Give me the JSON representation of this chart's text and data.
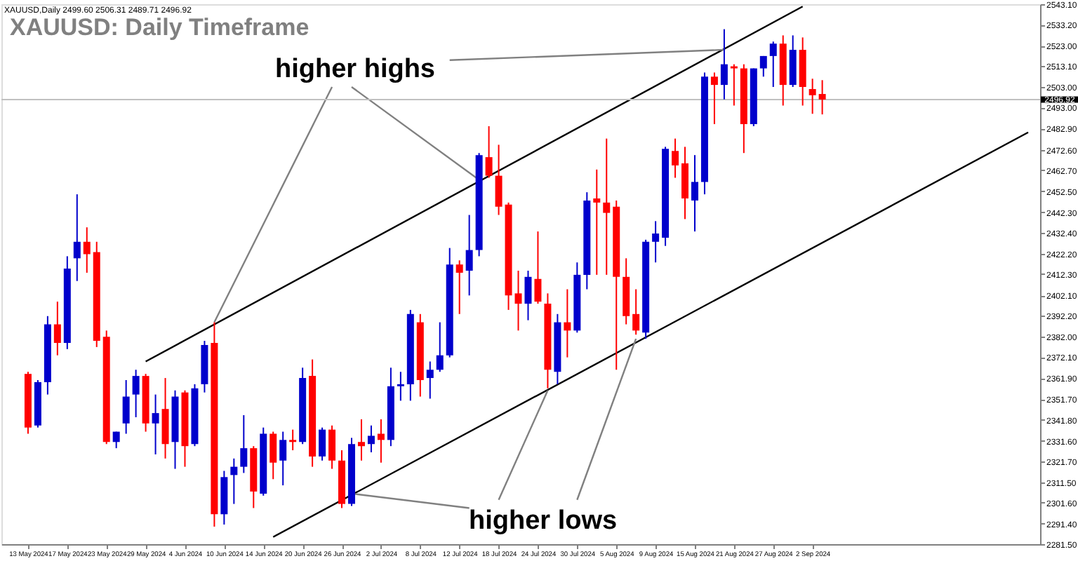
{
  "chart_data": {
    "type": "candlestick",
    "title": "XAUUSD: Daily Timeframe",
    "annotations": [
      "XAUUSD,Daily  2499.60 2506.31 2489.71 2496.92",
      "higher highs",
      "higher lows"
    ],
    "categories": [
      "13 May 2024",
      null,
      null,
      null,
      "17 May 2024",
      null,
      null,
      null,
      "23 May 2024",
      null,
      null,
      null,
      "29 May 2024",
      null,
      null,
      null,
      "4 Jun 2024",
      null,
      null,
      null,
      "10 Jun 2024",
      null,
      null,
      null,
      "14 Jun 2024",
      null,
      null,
      null,
      "20 Jun 2024",
      null,
      null,
      null,
      "26 Jun 2024",
      null,
      null,
      null,
      "2 Jul 2024",
      null,
      null,
      null,
      "8 Jul 2024",
      null,
      null,
      null,
      "12 Jul 2024",
      null,
      null,
      null,
      "18 Jul 2024",
      null,
      null,
      null,
      "24 Jul 2024",
      null,
      null,
      null,
      "30 Jul 2024",
      null,
      null,
      null,
      "5 Aug 2024",
      null,
      null,
      null,
      "9 Aug 2024",
      null,
      null,
      null,
      "15 Aug 2024",
      null,
      null,
      null,
      "21 Aug 2024",
      null,
      null,
      null,
      "27 Aug 2024",
      null,
      null,
      null,
      "2 Sep 2024",
      null,
      null,
      null,
      null,
      null,
      null,
      null,
      null,
      null,
      null,
      null,
      null,
      null,
      null,
      null,
      null,
      null,
      null,
      null,
      null,
      null,
      null
    ],
    "ohlc": [
      [
        2364,
        2365,
        2335,
        2338
      ],
      [
        2339,
        2361,
        2338,
        2360
      ],
      [
        2360,
        2392,
        2354,
        2388
      ],
      [
        2388,
        2399,
        2373,
        2379
      ],
      [
        2379,
        2421,
        2376,
        2415
      ],
      [
        2420,
        2451,
        2409,
        2428
      ],
      [
        2428,
        2435,
        2413,
        2422
      ],
      [
        2423,
        2428,
        2377,
        2380
      ],
      [
        2382,
        2385,
        2330,
        2331
      ],
      [
        2331,
        2336,
        2328,
        2336
      ],
      [
        2340,
        2361,
        2335,
        2353
      ],
      [
        2354,
        2366,
        2343,
        2363
      ],
      [
        2363,
        2364,
        2336,
        2340
      ],
      [
        2340,
        2354,
        2325,
        2345
      ],
      [
        2347,
        2362,
        2323,
        2330
      ],
      [
        2331,
        2356,
        2318,
        2353
      ],
      [
        2355,
        2356,
        2319,
        2329
      ],
      [
        2330,
        2359,
        2329,
        2357
      ],
      [
        2359,
        2380,
        2355,
        2378
      ],
      [
        2379,
        2389,
        2290,
        2296
      ],
      [
        2296,
        2317,
        2291,
        2314
      ],
      [
        2315,
        2323,
        2301,
        2319
      ],
      [
        2319,
        2344,
        2316,
        2328
      ],
      [
        2328,
        2329,
        2299,
        2307
      ],
      [
        2306,
        2338,
        2305,
        2335
      ],
      [
        2335,
        2336,
        2313,
        2321
      ],
      [
        2322,
        2336,
        2310,
        2332
      ],
      [
        2332,
        2337,
        2327,
        2331
      ],
      [
        2331,
        2367,
        2330,
        2362
      ],
      [
        2363,
        2371,
        2319,
        2324
      ],
      [
        2324,
        2338,
        2322,
        2337
      ],
      [
        2337,
        2339,
        2318,
        2322
      ],
      [
        2322,
        2327,
        2299,
        2301
      ],
      [
        2301,
        2333,
        2300,
        2330
      ],
      [
        2331,
        2342,
        2322,
        2329
      ],
      [
        2330,
        2339,
        2326,
        2334
      ],
      [
        2335,
        2342,
        2321,
        2332
      ],
      [
        2332,
        2367,
        2329,
        2358
      ],
      [
        2358,
        2365,
        2351,
        2359
      ],
      [
        2359,
        2395,
        2351,
        2393
      ],
      [
        2389,
        2393,
        2353,
        2361
      ],
      [
        2362,
        2370,
        2352,
        2366
      ],
      [
        2366,
        2389,
        2365,
        2373
      ],
      [
        2373,
        2425,
        2372,
        2417
      ],
      [
        2417,
        2419,
        2393,
        2413
      ],
      [
        2414,
        2441,
        2402,
        2424
      ],
      [
        2424,
        2471,
        2421,
        2470
      ],
      [
        2469,
        2484,
        2459,
        2460
      ],
      [
        2460,
        2475,
        2441,
        2445
      ],
      [
        2446,
        2447,
        2395,
        2402
      ],
      [
        2403,
        2414,
        2385,
        2398
      ],
      [
        2398,
        2414,
        2390,
        2411
      ],
      [
        2410,
        2433,
        2398,
        2399
      ],
      [
        2398,
        2403,
        2357,
        2366
      ],
      [
        2365,
        2393,
        2359,
        2389
      ],
      [
        2389,
        2405,
        2372,
        2385
      ],
      [
        2385,
        2418,
        2384,
        2412
      ],
      [
        2412,
        2452,
        2405,
        2448
      ],
      [
        2449,
        2463,
        2412,
        2447
      ],
      [
        2447,
        2478,
        2412,
        2442
      ],
      [
        2445,
        2448,
        2366,
        2411
      ],
      [
        2411,
        2420,
        2388,
        2392
      ],
      [
        2393,
        2405,
        2383,
        2385
      ],
      [
        2384,
        2429,
        2381,
        2428
      ],
      [
        2428,
        2438,
        2418,
        2432
      ],
      [
        2430,
        2474,
        2426,
        2473
      ],
      [
        2472,
        2478,
        2459,
        2465
      ],
      [
        2466,
        2474,
        2439,
        2449
      ],
      [
        2448,
        2470,
        2433,
        2457
      ],
      [
        2457,
        2510,
        2451,
        2508
      ],
      [
        2508,
        2510,
        2485,
        2504
      ],
      [
        2504,
        2531,
        2497,
        2514
      ],
      [
        2513,
        2514,
        2494,
        2512
      ],
      [
        2512,
        2514,
        2471,
        2485
      ],
      [
        2485,
        2512,
        2484,
        2512
      ],
      [
        2512,
        2518,
        2508,
        2518
      ],
      [
        2518,
        2525,
        2503,
        2524
      ],
      [
        2524,
        2528,
        2494,
        2504
      ],
      [
        2504,
        2528,
        2503,
        2521
      ],
      [
        2521,
        2527,
        2494,
        2503
      ],
      [
        2502,
        2507,
        2490,
        2499
      ],
      [
        2499.6,
        2506.31,
        2489.71,
        2496.92
      ],
      null,
      null,
      null,
      null,
      null,
      null,
      null,
      null,
      null,
      null,
      null,
      null,
      null,
      null,
      null,
      null,
      null,
      null,
      null,
      null,
      null
    ],
    "colors": [
      "#ff0000",
      "#0000cc",
      "#0000cc",
      "#ff0000",
      "#0000cc",
      "#0000cc",
      "#ff0000",
      "#ff0000",
      "#ff0000",
      "#0000cc",
      "#0000cc",
      "#0000cc",
      "#ff0000",
      "#0000cc",
      "#ff0000",
      "#0000cc",
      "#ff0000",
      "#0000cc",
      "#0000cc",
      "#ff0000",
      "#0000cc",
      "#0000cc",
      "#0000cc",
      "#ff0000",
      "#0000cc",
      "#ff0000",
      "#0000cc",
      "#ff0000",
      "#0000cc",
      "#ff0000",
      "#0000cc",
      "#ff0000",
      "#ff0000",
      "#0000cc",
      "#ff0000",
      "#0000cc",
      "#ff0000",
      "#0000cc",
      "#0000cc",
      "#0000cc",
      "#ff0000",
      "#0000cc",
      "#0000cc",
      "#0000cc",
      "#ff0000",
      "#0000cc",
      "#0000cc",
      "#ff0000",
      "#ff0000",
      "#ff0000",
      "#ff0000",
      "#0000cc",
      "#ff0000",
      "#ff0000",
      "#0000cc",
      "#ff0000",
      "#0000cc",
      "#0000cc",
      "#ff0000",
      "#ff0000",
      "#ff0000",
      "#ff0000",
      "#ff0000",
      "#0000cc",
      "#0000cc",
      "#0000cc",
      "#ff0000",
      "#ff0000",
      "#0000cc",
      "#0000cc",
      "#ff0000",
      "#0000cc",
      "#ff0000",
      "#ff0000",
      "#0000cc",
      "#0000cc",
      "#0000cc",
      "#ff0000",
      "#0000cc",
      "#ff0000",
      "#ff0000",
      "#ff0000",
      null,
      null,
      null,
      null,
      null,
      null,
      null,
      null,
      null,
      null,
      null,
      null,
      null,
      null,
      null,
      null,
      null,
      null,
      null,
      null,
      null
    ],
    "series": [
      {
        "type": "line",
        "color": "#000000",
        "values": [
          null,
          null,
          null,
          null,
          null,
          null,
          null,
          null,
          null,
          null,
          null,
          null,
          2370,
          null,
          null,
          null,
          null,
          null,
          null,
          null,
          null,
          null,
          null,
          null,
          null,
          null,
          null,
          null,
          null,
          null,
          null,
          null,
          null,
          null,
          null,
          null,
          null,
          null,
          null,
          null,
          null,
          null,
          null,
          null,
          null,
          null,
          null,
          null,
          null,
          null,
          null,
          null,
          null,
          null,
          null,
          null,
          null,
          null,
          null,
          null,
          null,
          null,
          null,
          null,
          null,
          null,
          null,
          null,
          null,
          null,
          null,
          null,
          null,
          null,
          null,
          null,
          null,
          null,
          null,
          2542,
          null,
          null,
          null,
          null,
          null,
          null,
          null,
          null,
          null,
          null,
          null,
          null,
          null,
          null,
          null,
          null,
          null,
          null,
          null,
          null,
          null,
          null,
          null
        ]
      },
      {
        "type": "line",
        "color": "#000000",
        "values": [
          null,
          null,
          null,
          null,
          null,
          null,
          null,
          null,
          null,
          null,
          null,
          null,
          null,
          null,
          null,
          null,
          null,
          null,
          null,
          null,
          null,
          null,
          null,
          null,
          null,
          2285,
          null,
          null,
          null,
          null,
          null,
          null,
          null,
          null,
          null,
          null,
          null,
          null,
          null,
          null,
          null,
          null,
          null,
          null,
          null,
          null,
          null,
          null,
          null,
          null,
          null,
          null,
          null,
          null,
          null,
          null,
          null,
          null,
          null,
          null,
          null,
          null,
          null,
          null,
          null,
          null,
          null,
          null,
          null,
          null,
          null,
          null,
          null,
          null,
          null,
          null,
          null,
          null,
          null,
          null,
          null,
          null,
          null,
          null,
          null,
          null,
          null,
          null,
          null,
          null,
          null,
          null,
          null,
          null,
          null,
          null,
          null,
          null,
          null,
          null,
          null,
          null,
          2481
        ]
      },
      {
        "type": "line",
        "color": "#808080",
        "values": [
          null,
          null,
          null,
          null,
          null,
          null,
          null,
          null,
          null,
          null,
          null,
          null,
          null,
          null,
          null,
          null,
          null,
          null,
          null,
          2389,
          null,
          null,
          null,
          null,
          null,
          null,
          null,
          null,
          null,
          null,
          null,
          2503,
          null,
          null,
          null,
          null,
          null,
          null,
          null,
          null,
          null,
          null,
          null,
          null,
          null,
          null,
          null,
          null,
          null,
          null,
          null,
          null,
          null,
          null,
          null,
          null,
          null,
          null,
          null,
          null,
          null,
          null,
          null,
          null,
          null,
          null,
          null,
          null,
          null,
          null,
          null,
          null,
          null,
          null,
          null,
          null,
          null,
          null,
          null,
          null,
          null,
          null,
          null,
          null,
          null,
          null,
          null,
          null,
          null,
          null,
          null,
          null,
          null,
          null,
          null,
          null,
          null,
          null,
          null,
          null,
          null,
          null,
          null
        ]
      },
      {
        "type": "line",
        "color": "#808080",
        "values": [
          null,
          null,
          null,
          null,
          null,
          null,
          null,
          null,
          null,
          null,
          null,
          null,
          null,
          null,
          null,
          null,
          null,
          null,
          null,
          null,
          null,
          null,
          null,
          null,
          null,
          null,
          null,
          null,
          null,
          null,
          null,
          null,
          null,
          2503,
          null,
          null,
          null,
          null,
          null,
          null,
          null,
          null,
          null,
          null,
          null,
          null,
          2458,
          null,
          null,
          null,
          null,
          null,
          null,
          null,
          null,
          null,
          null,
          null,
          null,
          null,
          null,
          null,
          null,
          null,
          null,
          null,
          null,
          null,
          null,
          null,
          null,
          null,
          null,
          null,
          null,
          null,
          null,
          null,
          null,
          null,
          null,
          null,
          null,
          null,
          null,
          null,
          null,
          null,
          null,
          null,
          null,
          null,
          null,
          null,
          null,
          null,
          null,
          null,
          null,
          null,
          null,
          null,
          null
        ]
      },
      {
        "type": "line",
        "color": "#808080",
        "values": [
          null,
          null,
          null,
          null,
          null,
          null,
          null,
          null,
          null,
          null,
          null,
          null,
          null,
          null,
          null,
          null,
          null,
          null,
          null,
          null,
          null,
          null,
          null,
          null,
          null,
          null,
          null,
          null,
          null,
          null,
          null,
          null,
          null,
          null,
          null,
          null,
          null,
          null,
          null,
          null,
          null,
          null,
          null,
          2516,
          null,
          null,
          null,
          null,
          null,
          null,
          null,
          null,
          null,
          null,
          null,
          null,
          null,
          null,
          null,
          null,
          null,
          null,
          null,
          null,
          null,
          null,
          null,
          null,
          null,
          null,
          null,
          2521,
          null,
          null,
          null,
          null,
          null,
          null,
          null,
          null,
          null,
          null,
          null,
          null,
          null,
          null,
          null,
          null,
          null,
          null,
          null,
          null,
          null,
          null,
          null,
          null,
          null,
          null,
          null,
          null,
          null,
          null,
          null
        ]
      },
      {
        "type": "line",
        "color": "#808080",
        "values": [
          null,
          null,
          null,
          null,
          null,
          null,
          null,
          null,
          null,
          null,
          null,
          null,
          null,
          null,
          null,
          null,
          null,
          null,
          null,
          null,
          null,
          null,
          null,
          null,
          null,
          null,
          null,
          null,
          null,
          null,
          null,
          null,
          null,
          2306,
          null,
          null,
          null,
          null,
          null,
          null,
          null,
          null,
          null,
          null,
          null,
          2299,
          null,
          null,
          null,
          null,
          null,
          null,
          null,
          null,
          null,
          null,
          null,
          null,
          null,
          null,
          null,
          null,
          null,
          null,
          null,
          null,
          null,
          null,
          null,
          null,
          null,
          null,
          null,
          null,
          null,
          null,
          null,
          null,
          null,
          null,
          null,
          null,
          null,
          null,
          null,
          null,
          null,
          null,
          null,
          null,
          null,
          null,
          null,
          null,
          null,
          null,
          null,
          null,
          null,
          null,
          null,
          null,
          null
        ]
      },
      {
        "type": "line",
        "color": "#808080",
        "values": [
          null,
          null,
          null,
          null,
          null,
          null,
          null,
          null,
          null,
          null,
          null,
          null,
          null,
          null,
          null,
          null,
          null,
          null,
          null,
          null,
          null,
          null,
          null,
          null,
          null,
          null,
          null,
          null,
          null,
          null,
          null,
          null,
          null,
          null,
          null,
          null,
          null,
          null,
          null,
          null,
          null,
          null,
          null,
          null,
          null,
          null,
          null,
          null,
          2303,
          null,
          null,
          null,
          null,
          2356,
          null,
          null,
          null,
          null,
          null,
          null,
          null,
          null,
          null,
          null,
          null,
          null,
          null,
          null,
          null,
          null,
          null,
          null,
          null,
          null,
          null,
          null,
          null,
          null,
          null,
          null,
          null,
          null,
          null,
          null,
          null,
          null,
          null,
          null,
          null,
          null,
          null,
          null,
          null,
          null,
          null,
          null,
          null,
          null,
          null,
          null,
          null,
          null,
          null
        ]
      },
      {
        "type": "line",
        "color": "#808080",
        "values": [
          null,
          null,
          null,
          null,
          null,
          null,
          null,
          null,
          null,
          null,
          null,
          null,
          null,
          null,
          null,
          null,
          null,
          null,
          null,
          null,
          null,
          null,
          null,
          null,
          null,
          null,
          null,
          null,
          null,
          null,
          null,
          null,
          null,
          null,
          null,
          null,
          null,
          null,
          null,
          null,
          null,
          null,
          null,
          null,
          null,
          null,
          null,
          null,
          null,
          null,
          null,
          null,
          null,
          null,
          null,
          null,
          2303,
          null,
          null,
          null,
          null,
          null,
          2381,
          null,
          null,
          null,
          null,
          null,
          null,
          null,
          null,
          null,
          null,
          null,
          null,
          null,
          null,
          null,
          null,
          null,
          null,
          null,
          null,
          null,
          null,
          null,
          null,
          null,
          null,
          null,
          null,
          null,
          null,
          null,
          null,
          null,
          null,
          null,
          null,
          null,
          null,
          null,
          null
        ]
      }
    ],
    "ylim": [
      2281.5,
      2543.1
    ],
    "yticks": [
      {
        "value": 2281.5,
        "label": "2281.50"
      },
      {
        "value": 2291.4,
        "label": "2291.40"
      },
      {
        "value": 2301.6,
        "label": "2301.60"
      },
      {
        "value": 2311.5,
        "label": "2311.50"
      },
      {
        "value": 2321.7,
        "label": "2321.70"
      },
      {
        "value": 2331.6,
        "label": "2331.60"
      },
      {
        "value": 2341.8,
        "label": "2341.80"
      },
      {
        "value": 2351.7,
        "label": "2351.70"
      },
      {
        "value": 2361.9,
        "label": "2361.90"
      },
      {
        "value": 2372.1,
        "label": "2372.10"
      },
      {
        "value": 2382.0,
        "label": "2382.00"
      },
      {
        "value": 2392.2,
        "label": "2392.20"
      },
      {
        "value": 2402.1,
        "label": "2402.10"
      },
      {
        "value": 2412.3,
        "label": "2412.30"
      },
      {
        "value": 2422.2,
        "label": "2422.20"
      },
      {
        "value": 2432.4,
        "label": "2432.40"
      },
      {
        "value": 2442.3,
        "label": "2442.30"
      },
      {
        "value": 2452.5,
        "label": "2452.50"
      },
      {
        "value": 2462.7,
        "label": "2462.70"
      },
      {
        "value": 2472.6,
        "label": "2472.60"
      },
      {
        "value": 2482.9,
        "label": "2482.90"
      },
      {
        "value": 2493.0,
        "label": "2493.00"
      },
      {
        "value": 2503.0,
        "label": "2503.00"
      },
      {
        "value": 2513.1,
        "label": "2513.10"
      },
      {
        "value": 2523.0,
        "label": "2523.00"
      },
      {
        "value": 2533.2,
        "label": "2533.20"
      },
      {
        "value": 2543.1,
        "label": "2543.10"
      }
    ],
    "ref_lines": [
      {
        "axis": "y",
        "value": 2496.92,
        "label": "2496.92",
        "color": "#c0c0c0"
      }
    ]
  }
}
